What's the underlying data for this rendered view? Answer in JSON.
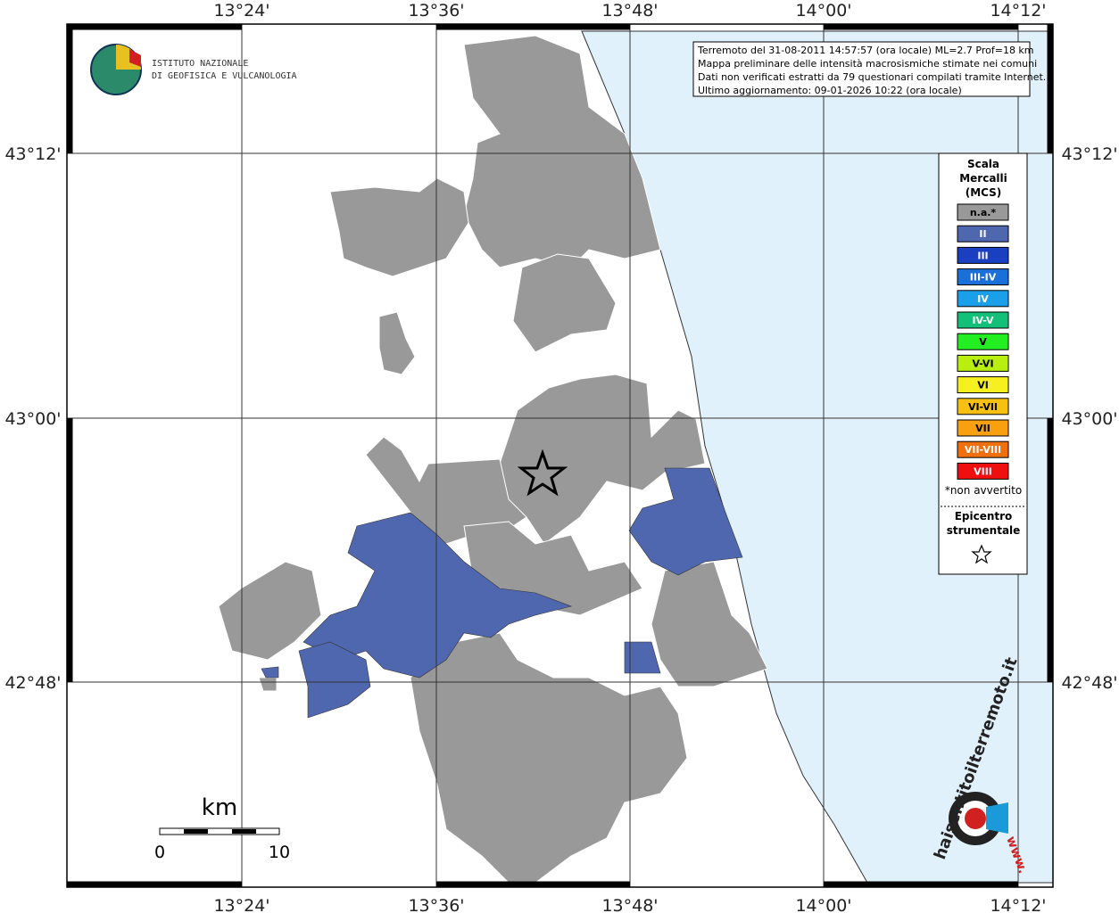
{
  "header": {
    "logo_line1": "ISTITUTO NAZIONALE",
    "logo_line2": "DI GEOFISICA E VULCANOLOGIA"
  },
  "info": [
    "Terremoto del 31-08-2011 14:57:57 (ora locale) ML=2.7 Prof=18 km",
    "Mappa preliminare delle intensità macrosismiche stimate nei comuni",
    "Dati non verificati estratti da 79 questionari compilati tramite Internet.",
    "Ultimo aggiornamento: 09-01-2026 10:22 (ora locale)"
  ],
  "axes": {
    "lon_labels": [
      "13°24'",
      "13°36'",
      "13°48'",
      "14°00'",
      "14°12'"
    ],
    "lat_labels": [
      "43°12'",
      "43°00'",
      "42°48'"
    ]
  },
  "legend": {
    "title": [
      "Scala",
      "Mercalli",
      "(MCS)"
    ],
    "items": [
      {
        "label": "n.a.*",
        "color": "#999999"
      },
      {
        "label": "II",
        "color": "#4f67ae"
      },
      {
        "label": "III",
        "color": "#1a3fc0"
      },
      {
        "label": "III-IV",
        "color": "#1a6fd8"
      },
      {
        "label": "IV",
        "color": "#1aa0e8"
      },
      {
        "label": "IV-V",
        "color": "#12c07a"
      },
      {
        "label": "V",
        "color": "#22ee22"
      },
      {
        "label": "V-VI",
        "color": "#b8ee10"
      },
      {
        "label": "VI",
        "color": "#f6f020"
      },
      {
        "label": "VI-VII",
        "color": "#f8c010"
      },
      {
        "label": "VII",
        "color": "#f8a010"
      },
      {
        "label": "VII-VIII",
        "color": "#f07010"
      },
      {
        "label": "VIII",
        "color": "#ee1010"
      }
    ],
    "note": "*non avvertito",
    "epicenter": [
      "Epicentro",
      "strumentale"
    ]
  },
  "scale_bar": {
    "unit": "km",
    "ticks": [
      0,
      10
    ]
  },
  "watermark": {
    "site": "haisentitoilterremoto.it",
    "prefix": "www."
  }
}
